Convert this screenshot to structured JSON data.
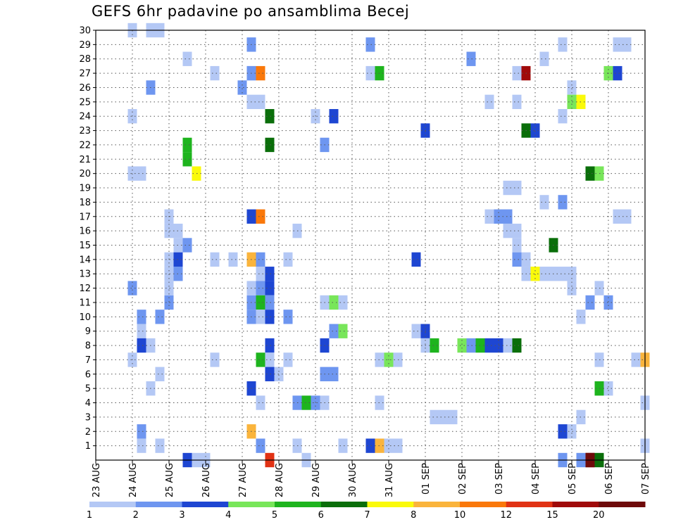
{
  "chart_data": {
    "type": "heatmap",
    "title": "GEFS 6hr padavine po ansamblima Becej",
    "x_tick_labels": [
      "23 AUG",
      "24 AUG",
      "25 AUG",
      "26 AUG",
      "27 AUG",
      "28 AUG",
      "29 AUG",
      "30 AUG",
      "31 AUG",
      "01 SEP",
      "02 SEP",
      "03 SEP",
      "04 SEP",
      "05 SEP",
      "06 SEP",
      "07 SEP"
    ],
    "y_tick_labels": [
      "1",
      "2",
      "3",
      "4",
      "5",
      "6",
      "7",
      "8",
      "9",
      "10",
      "11",
      "12",
      "13",
      "14",
      "15",
      "16",
      "17",
      "18",
      "19",
      "20",
      "21",
      "22",
      "23",
      "24",
      "25",
      "26",
      "27",
      "28",
      "29",
      "30"
    ],
    "x_range_steps": [
      0,
      60
    ],
    "steps_per_day": 4,
    "y_range": [
      0,
      30
    ],
    "grid": true,
    "colorbar": {
      "colors": [
        "#b4c8f5",
        "#6e96f0",
        "#1e46d2",
        "#78e65a",
        "#1eb41e",
        "#0a6e0a",
        "#fafa0a",
        "#fab43c",
        "#fa780a",
        "#e13214",
        "#a00a0a",
        "#6e0a0a"
      ],
      "labels": [
        "1",
        "2",
        "3",
        "4",
        "5",
        "6",
        "7",
        "8",
        "10",
        "12",
        "15",
        "20"
      ]
    },
    "cells": [
      [
        4,
        30,
        0
      ],
      [
        6,
        30,
        0
      ],
      [
        7,
        30,
        0
      ],
      [
        5,
        10,
        1
      ],
      [
        5,
        9,
        0
      ],
      [
        6,
        8,
        0
      ],
      [
        7,
        10,
        1
      ],
      [
        8,
        11,
        1
      ],
      [
        9,
        15,
        0
      ],
      [
        9,
        16,
        0
      ],
      [
        4,
        7,
        0
      ],
      [
        5,
        2,
        1
      ],
      [
        5,
        1,
        0
      ],
      [
        6,
        5,
        0
      ],
      [
        7,
        6,
        0
      ],
      [
        4,
        24,
        0
      ],
      [
        4,
        20,
        0
      ],
      [
        5,
        20,
        0
      ],
      [
        6,
        26,
        1
      ],
      [
        7,
        1,
        0
      ],
      [
        4,
        12,
        1
      ],
      [
        5,
        8,
        2
      ],
      [
        8,
        14,
        0
      ],
      [
        8,
        13,
        0
      ],
      [
        8,
        12,
        0
      ],
      [
        8,
        16,
        0
      ],
      [
        8,
        17,
        0
      ],
      [
        9,
        13,
        1
      ],
      [
        9,
        14,
        2
      ],
      [
        10,
        28,
        0
      ],
      [
        10,
        15,
        1
      ],
      [
        10,
        21,
        4
      ],
      [
        10,
        22,
        4
      ],
      [
        11,
        20,
        6
      ],
      [
        13,
        27,
        0
      ],
      [
        13,
        7,
        0
      ],
      [
        13,
        14,
        0
      ],
      [
        15,
        14,
        0
      ],
      [
        10,
        0,
        2
      ],
      [
        11,
        0,
        0
      ],
      [
        12,
        0,
        0
      ],
      [
        17,
        29,
        1
      ],
      [
        16,
        26,
        1
      ],
      [
        17,
        27,
        0
      ],
      [
        17,
        27,
        1
      ],
      [
        18,
        27,
        8
      ],
      [
        17,
        25,
        0
      ],
      [
        18,
        25,
        0
      ],
      [
        19,
        24,
        5
      ],
      [
        19,
        22,
        5
      ],
      [
        17,
        17,
        2
      ],
      [
        18,
        17,
        8
      ],
      [
        17,
        14,
        7
      ],
      [
        18,
        14,
        1
      ],
      [
        18,
        13,
        0
      ],
      [
        19,
        13,
        2
      ],
      [
        19,
        12,
        2
      ],
      [
        18,
        12,
        1
      ],
      [
        17,
        11,
        1
      ],
      [
        18,
        11,
        4
      ],
      [
        19,
        11,
        1
      ],
      [
        18,
        10,
        0
      ],
      [
        17,
        10,
        1
      ],
      [
        19,
        10,
        2
      ],
      [
        19,
        8,
        2
      ],
      [
        18,
        7,
        4
      ],
      [
        19,
        7,
        0
      ],
      [
        19,
        6,
        2
      ],
      [
        20,
        6,
        0
      ],
      [
        17,
        5,
        2
      ],
      [
        18,
        4,
        0
      ],
      [
        17,
        2,
        7
      ],
      [
        18,
        1,
        1
      ],
      [
        19,
        0,
        9
      ],
      [
        17,
        12,
        0
      ],
      [
        21,
        14,
        0
      ],
      [
        21,
        10,
        1
      ],
      [
        21,
        7,
        0
      ],
      [
        22,
        16,
        0
      ],
      [
        22,
        1,
        0
      ],
      [
        22,
        4,
        1
      ],
      [
        23,
        4,
        4
      ],
      [
        24,
        4,
        1
      ],
      [
        25,
        4,
        0
      ],
      [
        24,
        24,
        0
      ],
      [
        25,
        22,
        1
      ],
      [
        26,
        24,
        2
      ],
      [
        25,
        11,
        0
      ],
      [
        26,
        11,
        3
      ],
      [
        27,
        11,
        0
      ],
      [
        26,
        9,
        1
      ],
      [
        27,
        9,
        3
      ],
      [
        25,
        8,
        2
      ],
      [
        25,
        6,
        1
      ],
      [
        26,
        6,
        1
      ],
      [
        23,
        0,
        0
      ],
      [
        27,
        1,
        0
      ],
      [
        30,
        29,
        1
      ],
      [
        30,
        27,
        0
      ],
      [
        31,
        27,
        4
      ],
      [
        30,
        1,
        2
      ],
      [
        31,
        1,
        7
      ],
      [
        32,
        1,
        0
      ],
      [
        33,
        1,
        0
      ],
      [
        31,
        4,
        0
      ],
      [
        31,
        7,
        0
      ],
      [
        32,
        7,
        3
      ],
      [
        33,
        7,
        0
      ],
      [
        35,
        14,
        2
      ],
      [
        35,
        9,
        0
      ],
      [
        36,
        9,
        2
      ],
      [
        36,
        8,
        0
      ],
      [
        37,
        8,
        4
      ],
      [
        36,
        23,
        2
      ],
      [
        37,
        3,
        0
      ],
      [
        38,
        3,
        0
      ],
      [
        39,
        3,
        0
      ],
      [
        40,
        8,
        3
      ],
      [
        41,
        8,
        1
      ],
      [
        42,
        8,
        4
      ],
      [
        43,
        8,
        2
      ],
      [
        44,
        8,
        2
      ],
      [
        41,
        28,
        1
      ],
      [
        43,
        25,
        0
      ],
      [
        43,
        17,
        0
      ],
      [
        44,
        17,
        1
      ],
      [
        45,
        17,
        1
      ],
      [
        45,
        16,
        0
      ],
      [
        46,
        16,
        0
      ],
      [
        45,
        19,
        0
      ],
      [
        46,
        19,
        0
      ],
      [
        46,
        15,
        0
      ],
      [
        46,
        14,
        1
      ],
      [
        47,
        14,
        0
      ],
      [
        47,
        13,
        0
      ],
      [
        45,
        8,
        0
      ],
      [
        46,
        8,
        5
      ],
      [
        46,
        27,
        0
      ],
      [
        47,
        27,
        10
      ],
      [
        46,
        25,
        0
      ],
      [
        47,
        23,
        5
      ],
      [
        48,
        23,
        2
      ],
      [
        49,
        28,
        0
      ],
      [
        49,
        18,
        0
      ],
      [
        48,
        13,
        6
      ],
      [
        49,
        13,
        0
      ],
      [
        50,
        15,
        5
      ],
      [
        51,
        29,
        0
      ],
      [
        51,
        24,
        0
      ],
      [
        51,
        18,
        1
      ],
      [
        50,
        13,
        0
      ],
      [
        51,
        13,
        0
      ],
      [
        52,
        13,
        0
      ],
      [
        52,
        12,
        0
      ],
      [
        51,
        2,
        2
      ],
      [
        52,
        2,
        0
      ],
      [
        51,
        0,
        1
      ],
      [
        52,
        26,
        0
      ],
      [
        52,
        25,
        3
      ],
      [
        53,
        25,
        6
      ],
      [
        53,
        0,
        1
      ],
      [
        54,
        0,
        11
      ],
      [
        54,
        0,
        11
      ],
      [
        54,
        20,
        5
      ],
      [
        55,
        20,
        3
      ],
      [
        54,
        11,
        1
      ],
      [
        53,
        10,
        0
      ],
      [
        53,
        3,
        0
      ],
      [
        55,
        12,
        0
      ],
      [
        55,
        7,
        0
      ],
      [
        55,
        5,
        4
      ],
      [
        56,
        5,
        0
      ],
      [
        55,
        0,
        5
      ],
      [
        56,
        27,
        3
      ],
      [
        57,
        27,
        2
      ],
      [
        57,
        29,
        0
      ],
      [
        58,
        29,
        0
      ],
      [
        57,
        17,
        0
      ],
      [
        58,
        17,
        0
      ],
      [
        59,
        7,
        0
      ],
      [
        60,
        7,
        7
      ],
      [
        60,
        4,
        0
      ],
      [
        60,
        1,
        0
      ],
      [
        56,
        11,
        1
      ]
    ]
  }
}
